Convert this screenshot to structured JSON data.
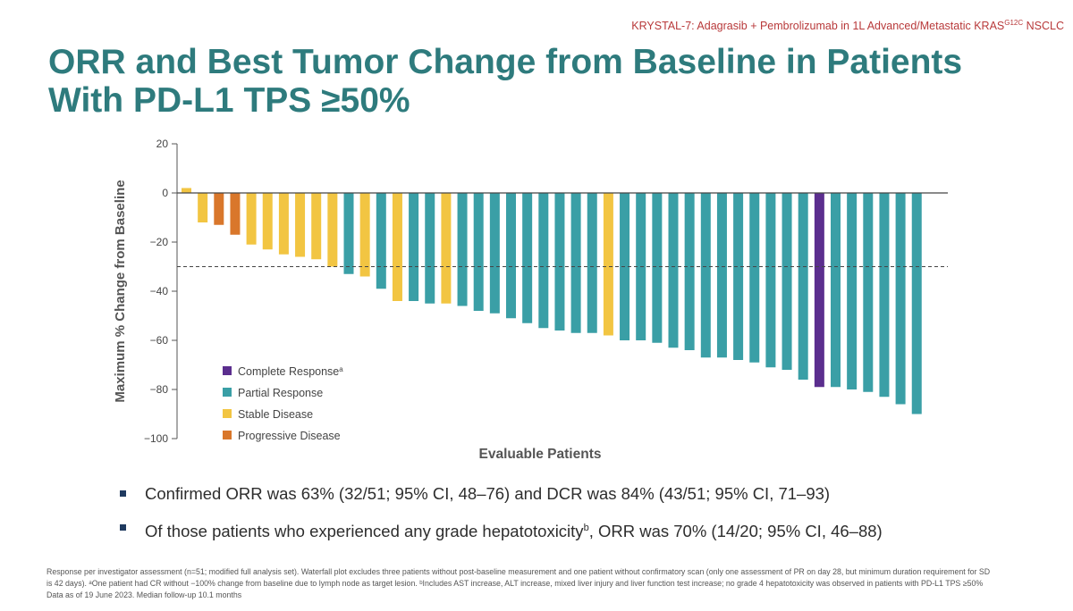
{
  "header": {
    "tag_main": "KRYSTAL-7: Adagrasib + Pembrolizumab in 1L Advanced/Metastatic KRAS",
    "tag_sup": "G12C",
    "tag_end": " NSCLC"
  },
  "title": {
    "line1": "ORR and Best Tumor Change from Baseline in Patients",
    "line2": "With PD-L1 TPS ≥50%"
  },
  "chart_data": {
    "type": "bar",
    "ylabel": "Maximum % Change from Baseline",
    "xlabel": "Evaluable Patients",
    "ylim": [
      -100,
      20
    ],
    "yticks": [
      20,
      0,
      -20,
      -40,
      -60,
      -80,
      -100
    ],
    "reference_line": -30,
    "legend_position": "bottom-left",
    "legend": [
      {
        "key": "CR",
        "label": "Complete Response",
        "sup": "a",
        "color": "#5b2e8e"
      },
      {
        "key": "PR",
        "label": "Partial Response",
        "sup": "",
        "color": "#3a9fa6"
      },
      {
        "key": "SD",
        "label": "Stable Disease",
        "sup": "",
        "color": "#f2c542"
      },
      {
        "key": "PD",
        "label": "Progressive Disease",
        "sup": "",
        "color": "#d9772b"
      }
    ],
    "values": [
      2,
      -12,
      -13,
      -17,
      -21,
      -23,
      -25,
      -26,
      -27,
      -30,
      -33,
      -34,
      -39,
      -44,
      -44,
      -45,
      -45,
      -46,
      -48,
      -49,
      -51,
      -53,
      -55,
      -56,
      -57,
      -57,
      -58,
      -60,
      -60,
      -61,
      -63,
      -64,
      -67,
      -67,
      -68,
      -69,
      -71,
      -72,
      -76,
      -79,
      -79,
      -80,
      -81,
      -83,
      -86,
      -90
    ],
    "response": [
      "SD",
      "SD",
      "PD",
      "PD",
      "SD",
      "SD",
      "SD",
      "SD",
      "SD",
      "SD",
      "PR",
      "SD",
      "PR",
      "SD",
      "PR",
      "PR",
      "SD",
      "PR",
      "PR",
      "PR",
      "PR",
      "PR",
      "PR",
      "PR",
      "PR",
      "PR",
      "SD",
      "PR",
      "PR",
      "PR",
      "PR",
      "PR",
      "PR",
      "PR",
      "PR",
      "PR",
      "PR",
      "PR",
      "PR",
      "CR",
      "PR",
      "PR",
      "PR",
      "PR",
      "PR",
      "PR"
    ]
  },
  "bullets": [
    {
      "text": "Confirmed ORR was 63% (32/51; 95% CI, 48–76) and DCR was 84% (43/51; 95% CI, 71–93)",
      "sup": "",
      "after": ""
    },
    {
      "text": "Of those patients who experienced any grade hepatotoxicity",
      "sup": "b",
      "after": ", ORR was 70% (14/20; 95% CI, 46–88)"
    }
  ],
  "footnote": [
    "Response per investigator assessment (n=51; modified full analysis set). Waterfall plot excludes three patients without post-baseline measurement and one patient without confirmatory scan (only one assessment of PR on day 28, but minimum duration requirement for SD",
    "is 42 days). ᵃOne patient had CR without −100% change from baseline due to lymph node as target lesion. ᵇIncludes AST increase, ALT increase, mixed liver injury and liver function test increase; no grade 4 hepatotoxicity was observed in patients with PD-L1 TPS ≥50%",
    "Data as of 19 June 2023. Median follow-up 10.1 months"
  ]
}
